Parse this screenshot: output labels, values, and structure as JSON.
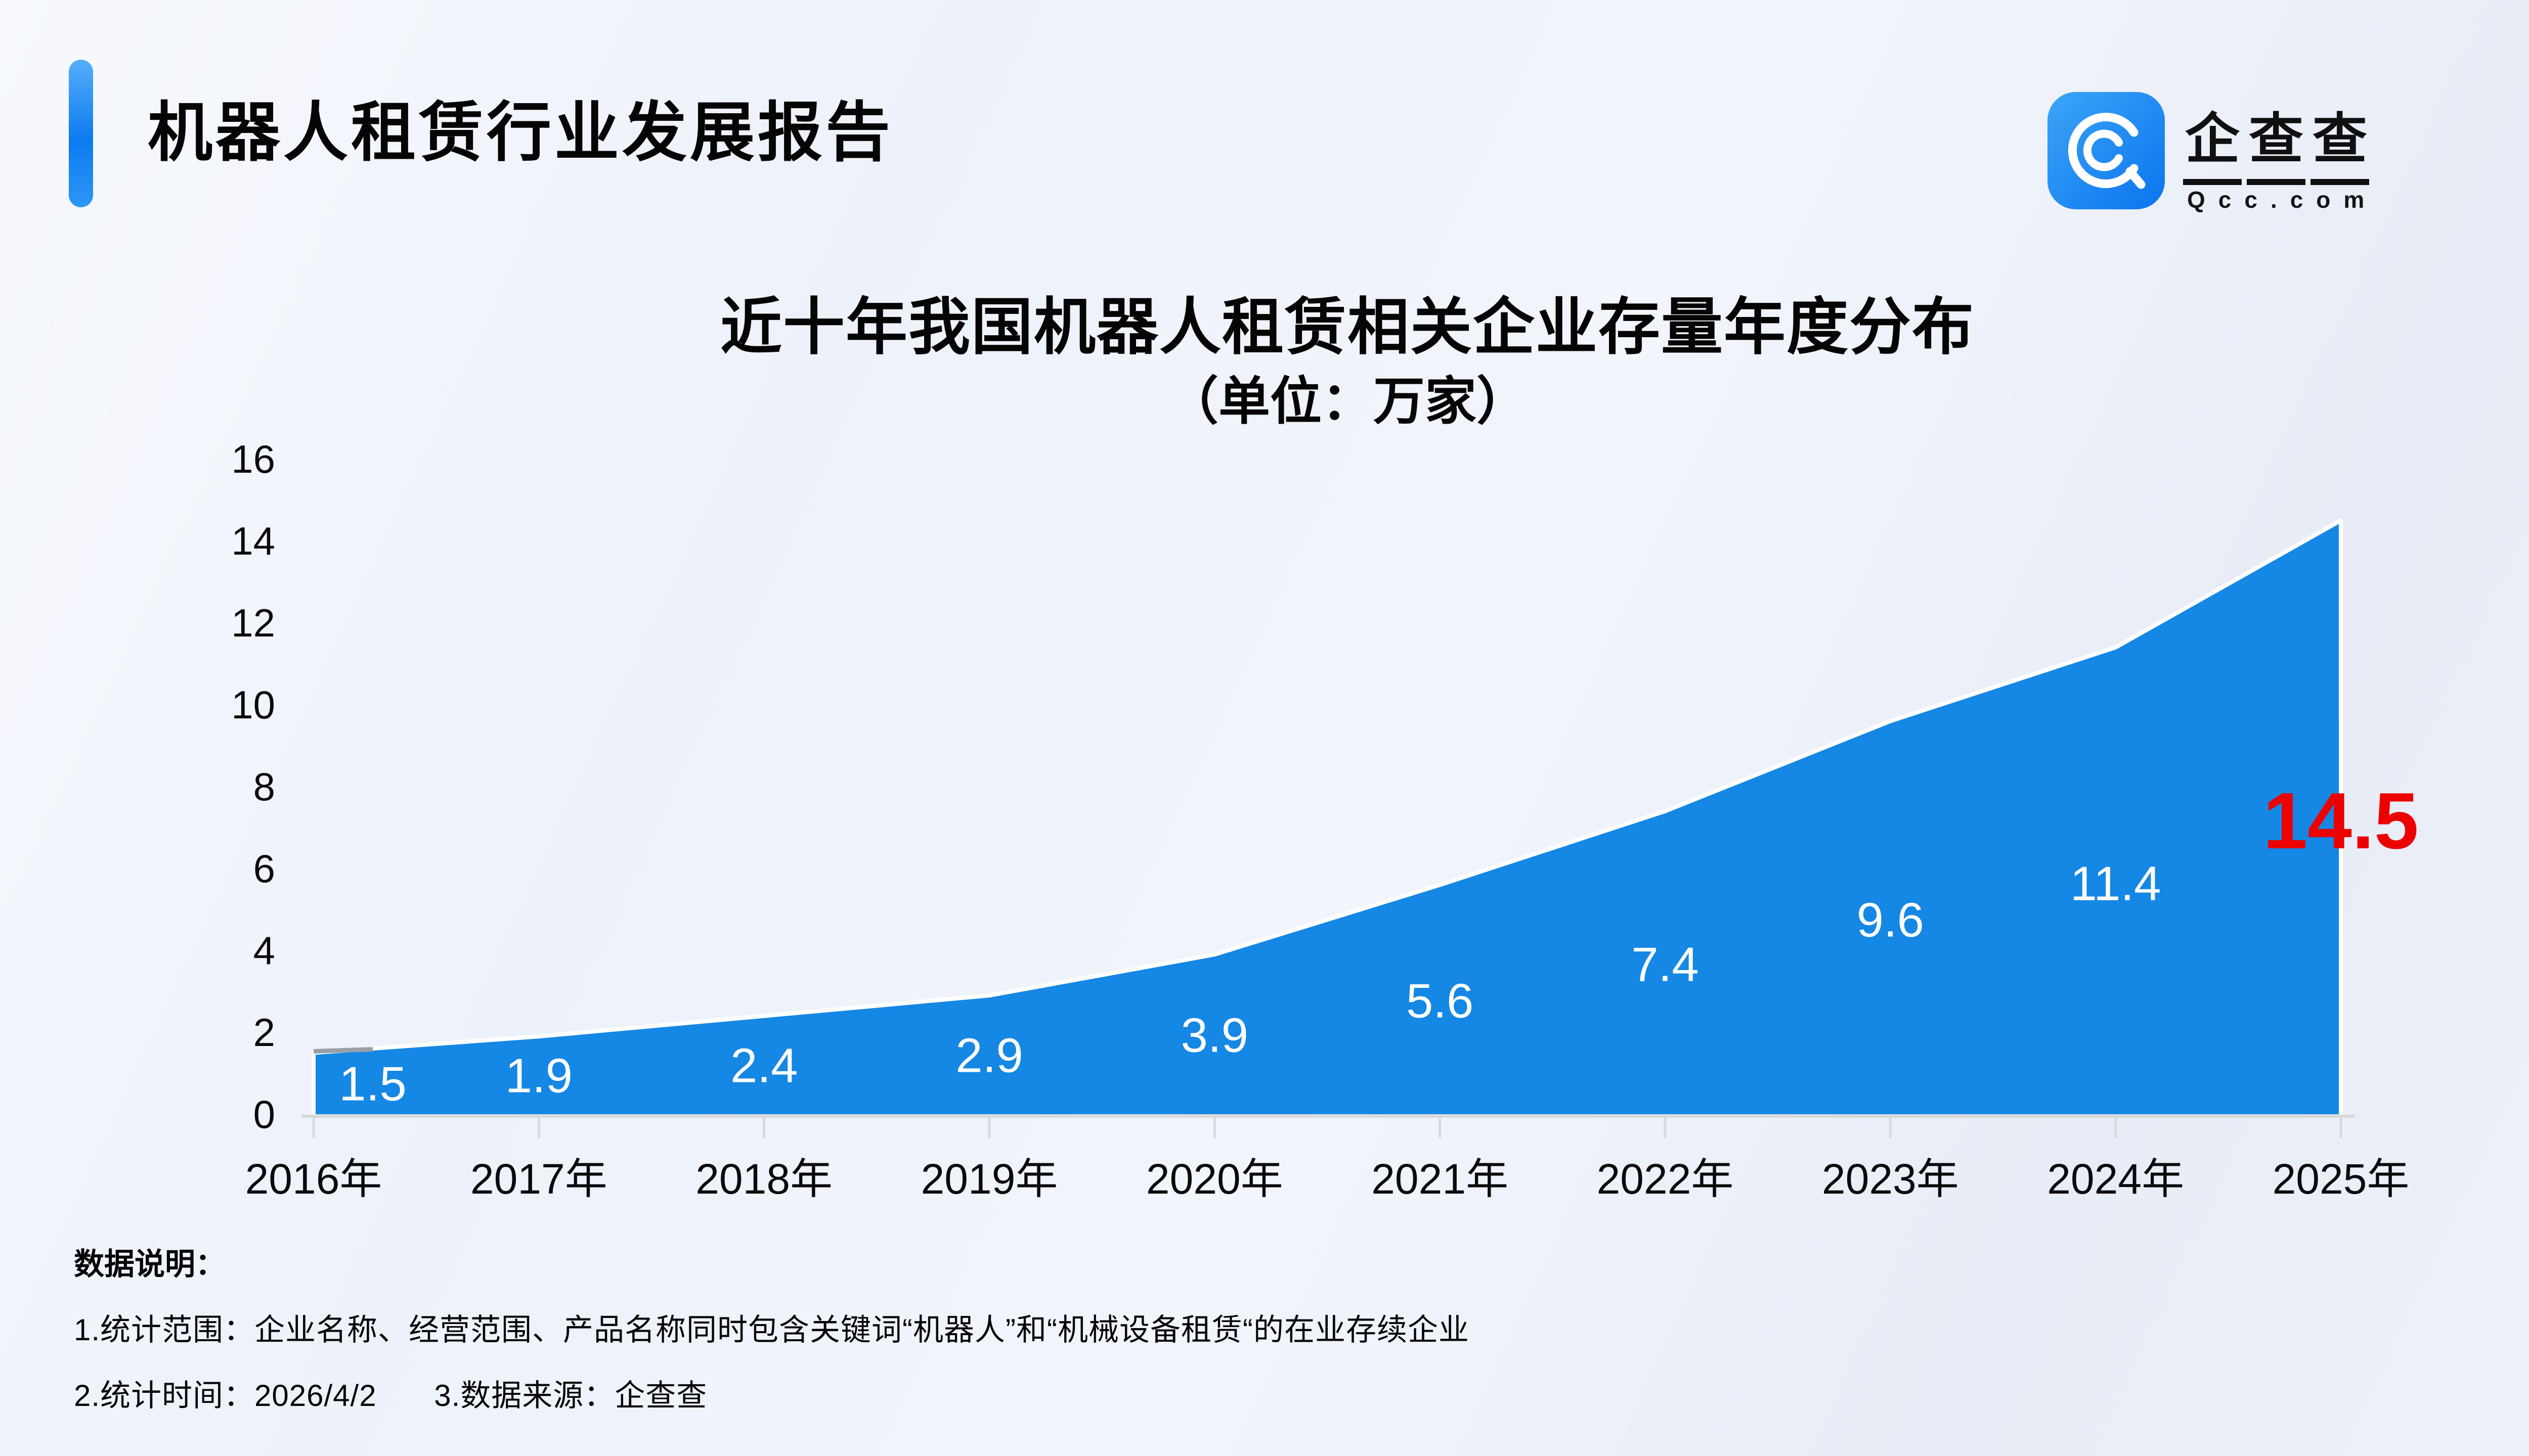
{
  "header": {
    "title": "机器人租赁行业发展报告"
  },
  "logo": {
    "name_chars": [
      "企",
      "查",
      "查"
    ],
    "domain": "Qcc.com"
  },
  "chart": {
    "title": "近十年我国机器人租赁相关企业存量年度分布",
    "subtitle": "（单位：万家）"
  },
  "chart_data": {
    "type": "area",
    "title": "近十年我国机器人租赁相关企业存量年度分布",
    "subtitle": "（单位：万家）",
    "unit": "万家",
    "categories": [
      "2016年",
      "2017年",
      "2018年",
      "2019年",
      "2020年",
      "2021年",
      "2022年",
      "2023年",
      "2024年",
      "2025年"
    ],
    "values": [
      1.5,
      1.9,
      2.4,
      2.9,
      3.9,
      5.6,
      7.4,
      9.6,
      11.4,
      14.5
    ],
    "ylim": [
      0,
      16
    ],
    "yticks": [
      0,
      2,
      4,
      6,
      8,
      10,
      12,
      14,
      16
    ],
    "grid": false,
    "legend": false,
    "highlight_last_value": true,
    "colors": {
      "area": "#1587e4",
      "area_edge": "#ffffff",
      "start_dash": "#9aa0a6",
      "value_label": "#ffffff",
      "highlight_label": "#ec0000",
      "axis_line": "#d9d9d9",
      "axis_text": "#0a0a0a"
    }
  },
  "footer": {
    "heading": "数据说明：",
    "line1": "1.统计范围：企业名称、经营范围、产品名称同时包含关键词“机器人”和“机械设备租赁“的在业存续企业",
    "line2_part1": "2.统计时间：2026/4/2",
    "line2_part2": "3.数据来源：企查查"
  }
}
